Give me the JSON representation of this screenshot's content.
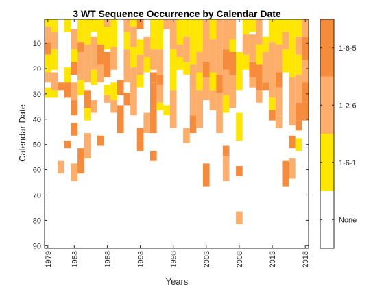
{
  "chart_data": {
    "type": "heatmap",
    "title": "3 WT Sequence Occurrence by Calendar Date",
    "xlabel": "Years",
    "ylabel": "Calendar Date",
    "x_ticks": [
      "1979",
      "1983",
      "1988",
      "1993",
      "1998",
      "2003",
      "2008",
      "2013",
      "2018"
    ],
    "x_tick_values": [
      1979,
      1983,
      1988,
      1993,
      1998,
      2003,
      2008,
      2013,
      2018
    ],
    "y_ticks": [
      "10",
      "20",
      "30",
      "40",
      "50",
      "60",
      "70",
      "80",
      "90"
    ],
    "y_tick_values": [
      10,
      20,
      30,
      40,
      50,
      60,
      70,
      80,
      90
    ],
    "xlim": [
      1978.5,
      2018.5
    ],
    "ylim": [
      91,
      0.5
    ],
    "categories": [
      "None",
      "1-6-1",
      "1-2-6",
      "1-6-5"
    ],
    "colors": {
      "None": "#ffffff",
      "1-6-1": "#ffe600",
      "1-2-6": "#fdae6b",
      "1-6-5": "#f68b3b"
    },
    "colorbar_labels": [
      "None",
      "1-6-1",
      "1-2-6",
      "1-6-5"
    ],
    "cells": [
      {
        "year": 1979,
        "runs": [
          [
            1,
            3,
            1
          ],
          [
            4,
            9,
            2
          ],
          [
            10,
            14,
            3
          ],
          [
            15,
            21,
            1
          ],
          [
            22,
            25,
            2
          ],
          [
            28,
            31,
            1
          ]
        ]
      },
      {
        "year": 1980,
        "runs": [
          [
            1,
            5,
            1
          ],
          [
            6,
            12,
            2
          ],
          [
            13,
            20,
            1
          ],
          [
            22,
            28,
            2
          ],
          [
            29,
            31,
            1
          ]
        ]
      },
      {
        "year": 1981,
        "runs": [
          [
            26,
            28,
            3
          ],
          [
            57,
            61,
            2
          ]
        ]
      },
      {
        "year": 1982,
        "runs": [
          [
            1,
            5,
            1
          ],
          [
            20,
            25,
            1
          ],
          [
            26,
            31,
            3
          ],
          [
            49,
            51,
            3
          ]
        ]
      },
      {
        "year": 1983,
        "runs": [
          [
            5,
            12,
            2
          ],
          [
            13,
            17,
            1
          ],
          [
            18,
            22,
            3
          ],
          [
            26,
            32,
            2
          ],
          [
            33,
            38,
            3
          ],
          [
            42,
            46,
            3
          ],
          [
            58,
            64,
            2
          ]
        ]
      },
      {
        "year": 1984,
        "runs": [
          [
            1,
            9,
            1
          ],
          [
            10,
            13,
            3
          ],
          [
            14,
            24,
            2
          ],
          [
            25,
            30,
            1
          ],
          [
            52,
            61,
            3
          ]
        ]
      },
      {
        "year": 1985,
        "runs": [
          [
            1,
            10,
            1
          ],
          [
            11,
            25,
            2
          ],
          [
            29,
            35,
            3
          ],
          [
            36,
            40,
            1
          ],
          [
            46,
            55,
            2
          ]
        ]
      },
      {
        "year": 1986,
        "runs": [
          [
            1,
            5,
            1
          ],
          [
            8,
            20,
            2
          ],
          [
            21,
            26,
            1
          ],
          [
            33,
            37,
            2
          ]
        ]
      },
      {
        "year": 1987,
        "runs": [
          [
            1,
            10,
            1
          ],
          [
            11,
            18,
            3
          ],
          [
            19,
            25,
            2
          ],
          [
            47,
            50,
            3
          ]
        ]
      },
      {
        "year": 1988,
        "runs": [
          [
            1,
            3,
            2
          ],
          [
            4,
            12,
            1
          ],
          [
            14,
            23,
            3
          ],
          [
            27,
            30,
            1
          ],
          [
            31,
            33,
            2
          ]
        ]
      },
      {
        "year": 1989,
        "runs": [
          [
            1,
            11,
            1
          ],
          [
            12,
            20,
            2
          ],
          [
            26,
            32,
            1
          ],
          [
            33,
            37,
            2
          ]
        ]
      },
      {
        "year": 1990,
        "runs": [
          [
            25,
            30,
            3
          ],
          [
            35,
            45,
            3
          ]
        ]
      },
      {
        "year": 1991,
        "runs": [
          [
            1,
            5,
            2
          ],
          [
            6,
            12,
            1
          ],
          [
            13,
            25,
            2
          ],
          [
            30,
            34,
            3
          ]
        ]
      },
      {
        "year": 1992,
        "runs": [
          [
            1,
            3,
            1
          ],
          [
            4,
            11,
            2
          ],
          [
            12,
            19,
            1
          ],
          [
            20,
            30,
            2
          ],
          [
            31,
            38,
            2
          ]
        ]
      },
      {
        "year": 1993,
        "runs": [
          [
            1,
            4,
            3
          ],
          [
            9,
            14,
            1
          ],
          [
            15,
            22,
            2
          ],
          [
            23,
            27,
            1
          ],
          [
            44,
            48,
            3
          ],
          [
            49,
            52,
            3
          ]
        ]
      },
      {
        "year": 1994,
        "runs": [
          [
            8,
            15,
            2
          ],
          [
            16,
            21,
            1
          ],
          [
            38,
            45,
            2
          ]
        ]
      },
      {
        "year": 1995,
        "runs": [
          [
            1,
            12,
            1
          ],
          [
            13,
            20,
            2
          ],
          [
            22,
            25,
            3
          ],
          [
            26,
            35,
            3
          ],
          [
            36,
            45,
            3
          ],
          [
            53,
            56,
            3
          ]
        ]
      },
      {
        "year": 1996,
        "runs": [
          [
            1,
            12,
            1
          ],
          [
            13,
            22,
            2
          ],
          [
            23,
            26,
            3
          ],
          [
            27,
            33,
            2
          ],
          [
            34,
            36,
            1
          ]
        ]
      },
      {
        "year": 1997,
        "runs": [
          [
            1,
            4,
            2
          ],
          [
            35,
            38,
            1
          ]
        ]
      },
      {
        "year": 1998,
        "runs": [
          [
            1,
            12,
            2
          ],
          [
            13,
            19,
            1
          ],
          [
            20,
            28,
            1
          ],
          [
            29,
            43,
            2
          ]
        ]
      },
      {
        "year": 1999,
        "runs": [
          [
            1,
            10,
            1
          ],
          [
            11,
            15,
            2
          ],
          [
            16,
            20,
            1
          ]
        ]
      },
      {
        "year": 2000,
        "runs": [
          [
            1,
            7,
            1
          ],
          [
            8,
            17,
            2
          ],
          [
            18,
            22,
            1
          ],
          [
            44,
            49,
            2
          ]
        ]
      },
      {
        "year": 2001,
        "runs": [
          [
            1,
            18,
            1
          ],
          [
            19,
            27,
            2
          ],
          [
            28,
            38,
            2
          ],
          [
            39,
            45,
            3
          ]
        ]
      },
      {
        "year": 2002,
        "runs": [
          [
            1,
            13,
            1
          ],
          [
            14,
            21,
            2
          ],
          [
            22,
            28,
            1
          ],
          [
            29,
            43,
            2
          ]
        ]
      },
      {
        "year": 2003,
        "runs": [
          [
            1,
            17,
            2
          ],
          [
            18,
            23,
            3
          ],
          [
            24,
            32,
            2
          ],
          [
            58,
            66,
            3
          ]
        ]
      },
      {
        "year": 2004,
        "runs": [
          [
            1,
            8,
            1
          ],
          [
            9,
            21,
            2
          ],
          [
            22,
            28,
            1
          ],
          [
            29,
            36,
            2
          ]
        ]
      },
      {
        "year": 2005,
        "runs": [
          [
            1,
            10,
            2
          ],
          [
            11,
            22,
            2
          ],
          [
            23,
            29,
            3
          ],
          [
            30,
            45,
            2
          ]
        ]
      },
      {
        "year": 2006,
        "runs": [
          [
            1,
            12,
            2
          ],
          [
            13,
            20,
            3
          ],
          [
            21,
            30,
            2
          ],
          [
            31,
            37,
            1
          ],
          [
            51,
            54,
            3
          ],
          [
            55,
            60,
            2
          ],
          [
            61,
            64,
            2
          ]
        ]
      },
      {
        "year": 2007,
        "runs": [
          [
            1,
            8,
            2
          ],
          [
            9,
            13,
            1
          ],
          [
            14,
            22,
            3
          ],
          [
            23,
            28,
            2
          ],
          [
            29,
            35,
            2
          ]
        ]
      },
      {
        "year": 2008,
        "runs": [
          [
            14,
            20,
            1
          ],
          [
            21,
            28,
            1
          ],
          [
            38,
            48,
            1
          ],
          [
            59,
            62,
            3
          ],
          [
            77,
            81,
            2
          ]
        ]
      },
      {
        "year": 2009,
        "runs": [
          [
            1,
            6,
            1
          ],
          [
            7,
            14,
            2
          ],
          [
            15,
            20,
            1
          ]
        ]
      },
      {
        "year": 2010,
        "runs": [
          [
            1,
            5,
            1
          ],
          [
            7,
            17,
            2
          ],
          [
            18,
            23,
            3
          ],
          [
            24,
            27,
            2
          ]
        ]
      },
      {
        "year": 2011,
        "runs": [
          [
            1,
            10,
            2
          ],
          [
            11,
            18,
            1
          ],
          [
            19,
            28,
            3
          ],
          [
            29,
            33,
            2
          ]
        ]
      },
      {
        "year": 2012,
        "runs": [
          [
            8,
            13,
            1
          ],
          [
            14,
            25,
            2
          ],
          [
            26,
            28,
            3
          ]
        ]
      },
      {
        "year": 2013,
        "runs": [
          [
            1,
            9,
            1
          ],
          [
            10,
            23,
            2
          ],
          [
            24,
            31,
            2
          ],
          [
            32,
            36,
            1
          ],
          [
            37,
            40,
            3
          ]
        ]
      },
      {
        "year": 2014,
        "runs": [
          [
            1,
            10,
            1
          ],
          [
            11,
            21,
            2
          ],
          [
            22,
            27,
            3
          ],
          [
            28,
            38,
            2
          ],
          [
            39,
            43,
            2
          ]
        ]
      },
      {
        "year": 2015,
        "runs": [
          [
            1,
            5,
            1
          ],
          [
            6,
            12,
            2
          ],
          [
            13,
            21,
            1
          ],
          [
            57,
            66,
            3
          ]
        ]
      },
      {
        "year": 2016,
        "runs": [
          [
            1,
            18,
            1
          ],
          [
            19,
            23,
            1
          ],
          [
            24,
            32,
            2
          ],
          [
            33,
            42,
            2
          ],
          [
            47,
            51,
            3
          ],
          [
            56,
            63,
            2
          ]
        ]
      },
      {
        "year": 2017,
        "runs": [
          [
            1,
            7,
            1
          ],
          [
            8,
            14,
            2
          ],
          [
            15,
            22,
            1
          ],
          [
            23,
            33,
            2
          ],
          [
            34,
            40,
            3
          ],
          [
            41,
            44,
            3
          ],
          [
            48,
            52,
            1
          ]
        ]
      },
      {
        "year": 2018,
        "runs": [
          [
            1,
            7,
            2
          ],
          [
            8,
            16,
            3
          ],
          [
            17,
            25,
            2
          ],
          [
            26,
            33,
            3
          ],
          [
            34,
            40,
            3
          ]
        ]
      }
    ]
  }
}
